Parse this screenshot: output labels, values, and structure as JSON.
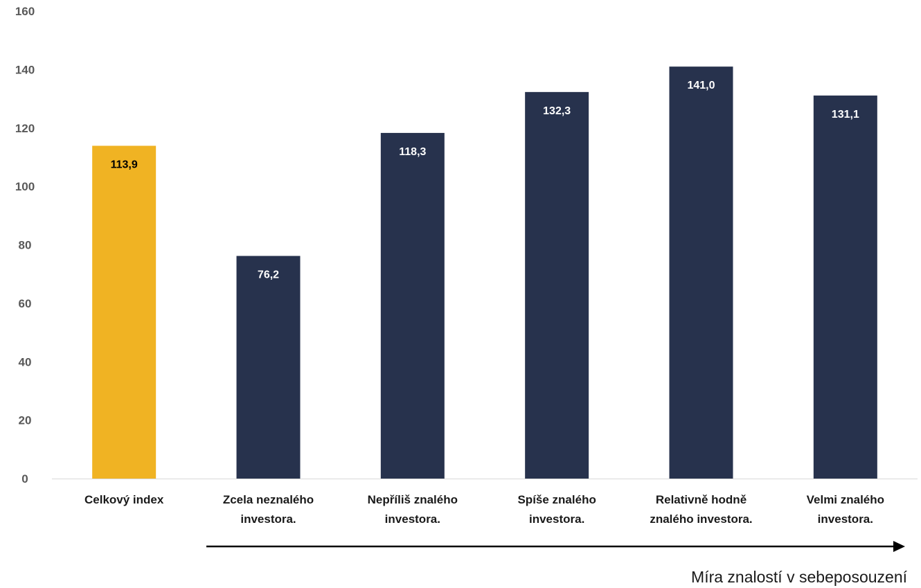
{
  "chart_data": {
    "type": "bar",
    "categories": [
      [
        "Celkový index"
      ],
      [
        "Zcela neznalého",
        "investora."
      ],
      [
        "Nepříliš znalého",
        "investora."
      ],
      [
        "Spíše znalého",
        "investora."
      ],
      [
        "Relativně hodně",
        "znalého investora."
      ],
      [
        "Velmi znalého",
        "investora."
      ]
    ],
    "values": [
      113.9,
      76.2,
      118.3,
      132.3,
      141.0,
      131.1
    ],
    "data_labels": [
      "113,9",
      "76,2",
      "118,3",
      "132,3",
      "141,0",
      "131,1"
    ],
    "ylim": [
      0,
      160
    ],
    "yticks": [
      0,
      20,
      40,
      60,
      80,
      100,
      120,
      140,
      160
    ],
    "xlabel": "Míra znalostí v sebeposouzení",
    "grid": false,
    "legend": "none",
    "colors": {
      "highlight": "#F0B323",
      "bar": "#27324D",
      "highlight_label": "#000000",
      "bar_label": "#ffffff",
      "axis_line": "#d9d9d9",
      "arrow": "#000000"
    },
    "highlight_index": 0
  }
}
